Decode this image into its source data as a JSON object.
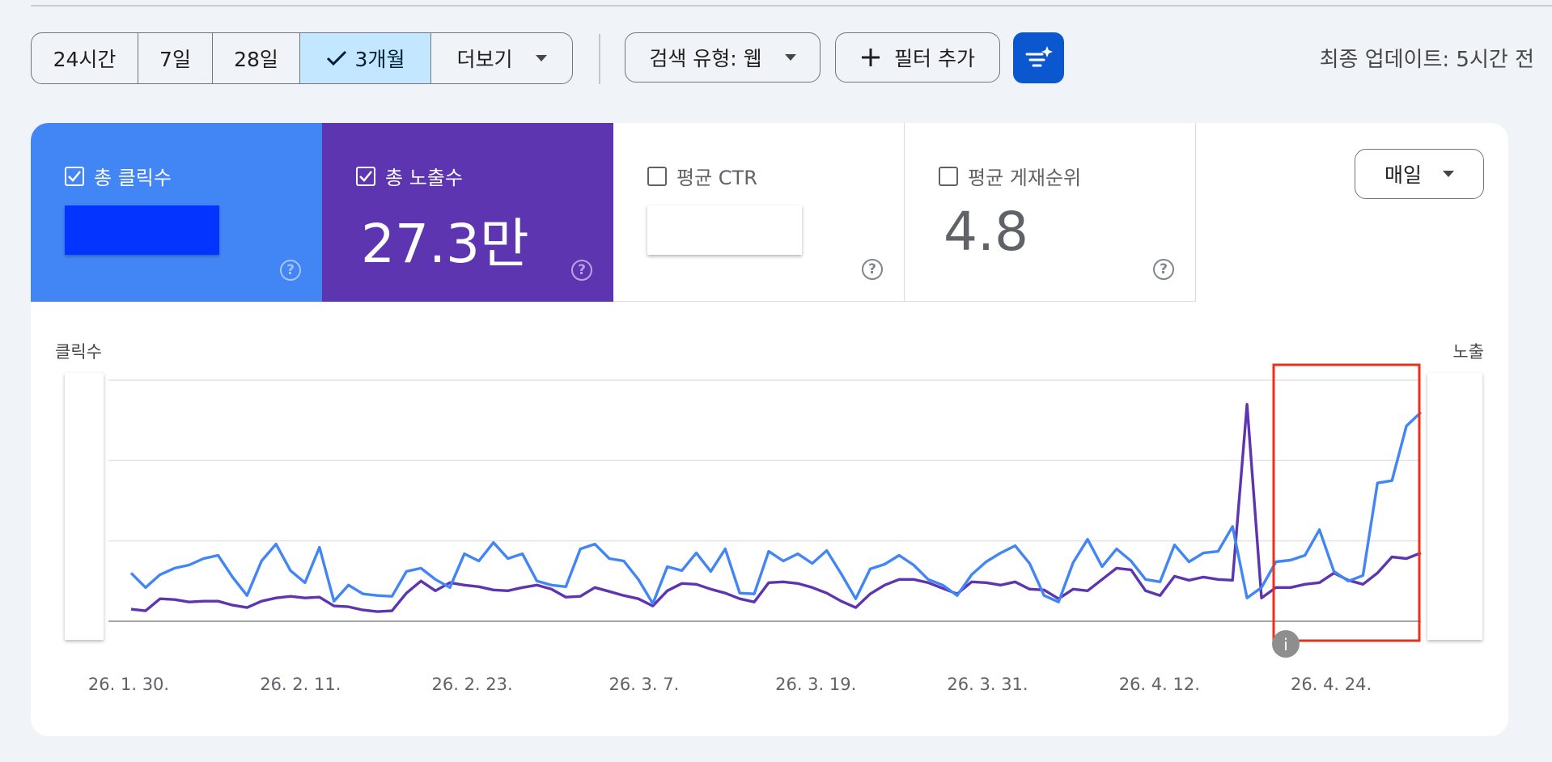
{
  "toolbar": {
    "ranges": [
      "24시간",
      "7일",
      "28일",
      "3개월"
    ],
    "more_label": "더보기",
    "search_type": "검색 유형: 웹",
    "add_filter": "필터 추가",
    "updated": "최종 업데이트: 5시간 전",
    "colors": {
      "active_bg": "#c2e7ff",
      "ai_button": "#0b57d0"
    }
  },
  "metrics": {
    "clicks_label": "총 클릭수",
    "impressions_label": "총 노출수",
    "impressions_value": "27.3만",
    "ctr_label": "평균 CTR",
    "position_label": "평균 게재순위",
    "position_value": "4.8",
    "colors": {
      "clicks": "#4285f4",
      "impressions": "#5e35b1"
    }
  },
  "granularity": "매일",
  "chart_data": {
    "type": "line",
    "left_axis_label": "클릭수",
    "right_axis_label": "노출",
    "x_tick_labels": [
      "26. 1. 30.",
      "26. 2. 11.",
      "26. 2. 23.",
      "26. 3. 7.",
      "26. 3. 19.",
      "26. 3. 31.",
      "26. 4. 12.",
      "26. 4. 24."
    ],
    "y_scale": "relative 0-3 gridlines (tick values hidden)",
    "grid": true,
    "highlight": "red box around last ~10 days",
    "series": [
      {
        "color": "#4285f4",
        "values": [
          0.6,
          0.42,
          0.58,
          0.66,
          0.7,
          0.78,
          0.82,
          0.55,
          0.32,
          0.75,
          0.96,
          0.63,
          0.48,
          0.92,
          0.25,
          0.45,
          0.34,
          0.32,
          0.31,
          0.62,
          0.66,
          0.52,
          0.42,
          0.84,
          0.75,
          0.98,
          0.78,
          0.84,
          0.5,
          0.45,
          0.43,
          0.9,
          0.96,
          0.78,
          0.75,
          0.52,
          0.22,
          0.68,
          0.63,
          0.85,
          0.62,
          0.9,
          0.35,
          0.34,
          0.87,
          0.75,
          0.84,
          0.72,
          0.88,
          0.59,
          0.28,
          0.65,
          0.71,
          0.82,
          0.7,
          0.52,
          0.45,
          0.32,
          0.58,
          0.74,
          0.85,
          0.94,
          0.72,
          0.32,
          0.24,
          0.73,
          1.02,
          0.68,
          0.9,
          0.75,
          0.52,
          0.49,
          0.95,
          0.74,
          0.85,
          0.87,
          1.18,
          0.29,
          0.42,
          0.74,
          0.76,
          0.82,
          1.14,
          0.62,
          0.5,
          0.57,
          1.72,
          1.75,
          2.43,
          2.6
        ]
      },
      {
        "color": "#5e35b1",
        "values": [
          0.15,
          0.13,
          0.28,
          0.27,
          0.24,
          0.25,
          0.25,
          0.2,
          0.17,
          0.25,
          0.29,
          0.31,
          0.29,
          0.3,
          0.19,
          0.18,
          0.14,
          0.12,
          0.13,
          0.35,
          0.5,
          0.38,
          0.48,
          0.45,
          0.43,
          0.39,
          0.38,
          0.42,
          0.45,
          0.4,
          0.3,
          0.31,
          0.42,
          0.37,
          0.32,
          0.28,
          0.19,
          0.38,
          0.47,
          0.46,
          0.4,
          0.35,
          0.28,
          0.24,
          0.48,
          0.49,
          0.47,
          0.42,
          0.35,
          0.25,
          0.17,
          0.34,
          0.45,
          0.52,
          0.52,
          0.48,
          0.41,
          0.34,
          0.49,
          0.48,
          0.45,
          0.49,
          0.4,
          0.39,
          0.28,
          0.4,
          0.38,
          0.52,
          0.66,
          0.64,
          0.38,
          0.32,
          0.56,
          0.51,
          0.55,
          0.52,
          0.51,
          2.7,
          0.29,
          0.42,
          0.42,
          0.46,
          0.48,
          0.6,
          0.51,
          0.46,
          0.6,
          0.8,
          0.78,
          0.85
        ]
      }
    ]
  }
}
